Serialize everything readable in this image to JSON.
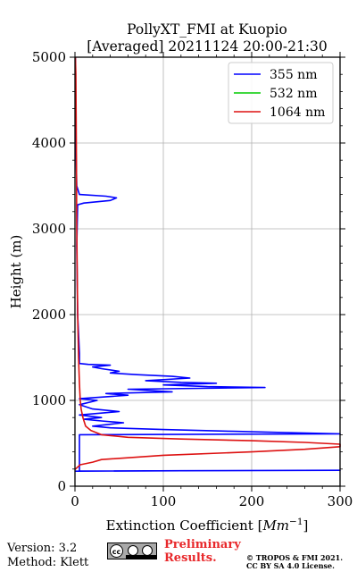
{
  "chart_data": {
    "type": "line",
    "title": "PollyXT_FMI at Kuopio",
    "subtitle": "[Averaged] 20211124 20:00-21:30",
    "xlabel": "Extinction Coefficient [",
    "xlabel_unit": "Mm",
    "xlabel_exp": "−1",
    "xlabel_close": "]",
    "ylabel": "Height (m)",
    "xlim": [
      0,
      300
    ],
    "ylim": [
      0,
      5000
    ],
    "xticks": [
      0,
      100,
      200,
      300
    ],
    "yticks": [
      0,
      1000,
      2000,
      3000,
      4000,
      5000
    ],
    "grid": true,
    "legend_position": "top-right",
    "series": [
      {
        "name": "355 nm",
        "color": "#0000ff",
        "points": [
          [
            0,
            175
          ],
          [
            120,
            180
          ],
          [
            300,
            185
          ],
          [
            120,
            180
          ],
          [
            5,
            176
          ],
          [
            5,
            600
          ],
          [
            300,
            610
          ],
          [
            240,
            625
          ],
          [
            180,
            640
          ],
          [
            100,
            660
          ],
          [
            40,
            680
          ],
          [
            20,
            700
          ],
          [
            55,
            740
          ],
          [
            30,
            760
          ],
          [
            10,
            780
          ],
          [
            30,
            800
          ],
          [
            5,
            830
          ],
          [
            50,
            870
          ],
          [
            20,
            900
          ],
          [
            5,
            950
          ],
          [
            25,
            1000
          ],
          [
            5,
            1020
          ],
          [
            60,
            1060
          ],
          [
            35,
            1080
          ],
          [
            110,
            1100
          ],
          [
            60,
            1130
          ],
          [
            215,
            1150
          ],
          [
            150,
            1160
          ],
          [
            100,
            1180
          ],
          [
            160,
            1200
          ],
          [
            120,
            1210
          ],
          [
            80,
            1230
          ],
          [
            130,
            1260
          ],
          [
            110,
            1280
          ],
          [
            70,
            1300
          ],
          [
            40,
            1320
          ],
          [
            50,
            1340
          ],
          [
            30,
            1370
          ],
          [
            20,
            1390
          ],
          [
            40,
            1410
          ],
          [
            15,
            1420
          ],
          [
            5,
            1430
          ],
          [
            5,
            1550
          ],
          [
            3,
            2000
          ],
          [
            2,
            2800
          ],
          [
            3,
            3280
          ],
          [
            10,
            3300
          ],
          [
            40,
            3330
          ],
          [
            47,
            3360
          ],
          [
            35,
            3380
          ],
          [
            5,
            3400
          ],
          [
            2,
            3500
          ],
          [
            1,
            4000
          ],
          [
            0.5,
            5000
          ]
        ]
      },
      {
        "name": "532 nm",
        "color": "#00cc00",
        "points": []
      },
      {
        "name": "1064 nm",
        "color": "#dd1111",
        "points": [
          [
            0,
            195
          ],
          [
            6,
            250
          ],
          [
            20,
            280
          ],
          [
            30,
            310
          ],
          [
            100,
            360
          ],
          [
            200,
            400
          ],
          [
            260,
            430
          ],
          [
            300,
            460
          ],
          [
            300,
            490
          ],
          [
            260,
            510
          ],
          [
            200,
            530
          ],
          [
            120,
            550
          ],
          [
            60,
            570
          ],
          [
            30,
            600
          ],
          [
            18,
            650
          ],
          [
            12,
            700
          ],
          [
            9,
            800
          ],
          [
            7,
            900
          ],
          [
            6,
            1000
          ],
          [
            5,
            1200
          ],
          [
            4,
            1500
          ],
          [
            3,
            2000
          ],
          [
            2,
            3000
          ],
          [
            1.5,
            4000
          ],
          [
            1,
            4800
          ],
          [
            0.5,
            5000
          ]
        ]
      }
    ]
  },
  "footer": {
    "version": "Version: 3.2",
    "method": "Method: Klett",
    "license_badge": "cc by sa",
    "preliminary_line1": "Preliminary",
    "preliminary_line2": "Results.",
    "copyright_line1": "© TROPOS & FMI 2021.",
    "copyright_line2": "CC BY SA 4.0 License."
  }
}
